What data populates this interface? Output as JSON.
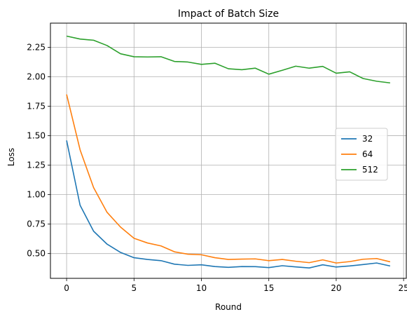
{
  "chart_data": {
    "type": "line",
    "title": "Impact of Batch Size",
    "xlabel": "Round",
    "ylabel": "Loss",
    "xlim": [
      -1.2,
      25.2
    ],
    "ylim": [
      0.29,
      2.455
    ],
    "xticks": [
      0,
      5,
      10,
      15,
      20,
      25
    ],
    "yticks": [
      0.5,
      0.75,
      1.0,
      1.25,
      1.5,
      1.75,
      2.0,
      2.25
    ],
    "grid": true,
    "legend_position": "center-right",
    "x": [
      0,
      1,
      2,
      3,
      4,
      5,
      6,
      7,
      8,
      9,
      10,
      11,
      12,
      13,
      14,
      15,
      16,
      17,
      18,
      19,
      20,
      21,
      22,
      23,
      24
    ],
    "series": [
      {
        "name": "32",
        "color": "#1f77b4",
        "values": [
          1.46,
          0.91,
          0.69,
          0.58,
          0.51,
          0.465,
          0.45,
          0.44,
          0.41,
          0.4,
          0.405,
          0.39,
          0.383,
          0.39,
          0.389,
          0.381,
          0.397,
          0.387,
          0.378,
          0.405,
          0.386,
          0.395,
          0.407,
          0.42,
          0.395
        ]
      },
      {
        "name": "64",
        "color": "#ff7f0e",
        "values": [
          1.85,
          1.38,
          1.06,
          0.85,
          0.725,
          0.63,
          0.59,
          0.565,
          0.515,
          0.495,
          0.49,
          0.465,
          0.45,
          0.453,
          0.455,
          0.44,
          0.45,
          0.435,
          0.423,
          0.447,
          0.42,
          0.432,
          0.452,
          0.458,
          0.43
        ]
      },
      {
        "name": "512",
        "color": "#2ca02c",
        "values": [
          2.345,
          2.32,
          2.31,
          2.265,
          2.195,
          2.17,
          2.168,
          2.17,
          2.13,
          2.125,
          2.105,
          2.115,
          2.068,
          2.06,
          2.073,
          2.022,
          2.055,
          2.09,
          2.073,
          2.088,
          2.03,
          2.042,
          1.985,
          1.962,
          1.948
        ]
      }
    ]
  }
}
